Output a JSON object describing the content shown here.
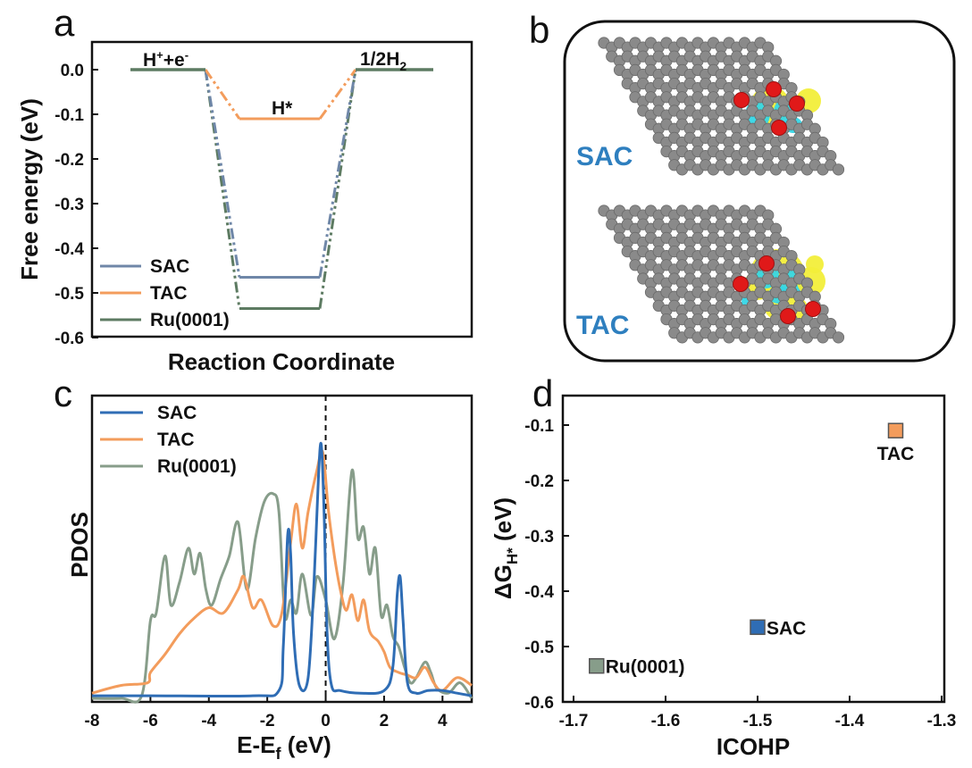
{
  "colors": {
    "SAC": "#2f6db5",
    "TAC": "#f39c5c",
    "Ru": "#879d8a",
    "SAC_a": "#6f87a8",
    "Ru_a": "#5d7b62",
    "axis": "#111111"
  },
  "panels": {
    "a": "a",
    "b": "b",
    "c": "c",
    "d": "d"
  },
  "panel_b": {
    "labels": [
      "SAC",
      "TAC"
    ],
    "colors": {
      "carbon": "#8a8a8a",
      "ru": "#e01919",
      "iso_yellow": "#f2ee3a",
      "iso_cyan": "#35d6e6"
    }
  },
  "chart_data": [
    {
      "id": "a",
      "type": "line",
      "ylabel": "Free energy (eV)",
      "xlabel": "Reaction Coordinate",
      "ylim": [
        -0.6,
        0.0
      ],
      "yticks": [
        "0.0",
        "-0.1",
        "-0.2",
        "-0.3",
        "-0.4",
        "-0.5",
        "-0.6"
      ],
      "states": [
        "H+e-",
        "H*",
        "1/2H2"
      ],
      "state_labels": {
        "left_main": "H",
        "left_sup": "+",
        "left_plus": "+e",
        "left_sup2": "-",
        "mid": "H*",
        "right_main": "1/2H",
        "right_sub": "2"
      },
      "series": [
        {
          "name": "SAC",
          "values": [
            0.0,
            -0.465,
            0.0
          ]
        },
        {
          "name": "TAC",
          "values": [
            0.0,
            -0.11,
            0.0
          ]
        },
        {
          "name": "Ru(0001)",
          "values": [
            0.0,
            -0.535,
            0.0
          ]
        }
      ],
      "legend": "bottom-left",
      "grid": false
    },
    {
      "id": "c",
      "type": "line",
      "xlabel_main": "E-E",
      "xlabel_sub": "f",
      "xlabel_unit": " (eV)",
      "ylabel": "PDOS",
      "xlim": [
        -8,
        5
      ],
      "xticks": [
        "-8",
        "-6",
        "-4",
        "-2",
        "0",
        "2",
        "4"
      ],
      "fermi_line_x": 0,
      "series": [
        {
          "name": "SAC",
          "x": [
            -8,
            -6,
            -2.5,
            -1.6,
            -1.45,
            -1.3,
            -1.2,
            -1.1,
            -0.9,
            -0.6,
            -0.4,
            -0.25,
            -0.15,
            -0.05,
            0.05,
            0.2,
            0.5,
            1.2,
            2.0,
            2.3,
            2.45,
            2.55,
            2.65,
            2.8,
            3.1,
            3.5,
            4.0,
            4.5,
            5.0
          ],
          "y": [
            0.01,
            0.01,
            0.01,
            0.03,
            0.2,
            0.63,
            0.56,
            0.25,
            0.05,
            0.08,
            0.45,
            0.85,
            0.98,
            0.7,
            0.25,
            0.05,
            0.03,
            0.02,
            0.03,
            0.12,
            0.4,
            0.47,
            0.3,
            0.06,
            0.02,
            0.03,
            0.03,
            0.02,
            0.01
          ]
        },
        {
          "name": "TAC",
          "x": [
            -8,
            -7,
            -6.1,
            -6.0,
            -5.5,
            -5.0,
            -4.5,
            -4.0,
            -3.5,
            -3.0,
            -2.8,
            -2.5,
            -2.2,
            -1.8,
            -1.5,
            -1.2,
            -1.0,
            -0.8,
            -0.6,
            -0.3,
            -0.1,
            0.1,
            0.3,
            0.5,
            0.7,
            0.9,
            1.1,
            1.3,
            1.5,
            1.8,
            2.0,
            2.2,
            2.5,
            2.8,
            3.1,
            3.4,
            3.7,
            4.0,
            4.5,
            5.0
          ],
          "y": [
            0.02,
            0.05,
            0.06,
            0.1,
            0.17,
            0.25,
            0.31,
            0.35,
            0.33,
            0.42,
            0.47,
            0.35,
            0.38,
            0.28,
            0.33,
            0.6,
            0.75,
            0.58,
            0.72,
            0.88,
            0.95,
            0.72,
            0.55,
            0.42,
            0.34,
            0.4,
            0.3,
            0.38,
            0.26,
            0.22,
            0.18,
            0.12,
            0.1,
            0.09,
            0.08,
            0.12,
            0.06,
            0.03,
            0.08,
            0.05
          ]
        },
        {
          "name": "Ru(0001)",
          "x": [
            -8,
            -7,
            -6.3,
            -6.0,
            -5.8,
            -5.5,
            -5.3,
            -5.0,
            -4.7,
            -4.5,
            -4.3,
            -4.1,
            -3.9,
            -3.6,
            -3.3,
            -3.0,
            -2.7,
            -2.4,
            -2.1,
            -1.8,
            -1.6,
            -1.4,
            -1.2,
            -1.0,
            -0.8,
            -0.5,
            -0.3,
            0.0,
            0.3,
            0.6,
            0.9,
            1.1,
            1.3,
            1.5,
            1.7,
            1.9,
            2.1,
            2.3,
            2.5,
            2.7,
            2.9,
            3.1,
            3.4,
            3.6,
            3.8,
            4.2,
            4.6,
            5.0
          ],
          "y": [
            0.0,
            0.0,
            0.01,
            0.3,
            0.33,
            0.55,
            0.36,
            0.45,
            0.58,
            0.48,
            0.56,
            0.42,
            0.36,
            0.46,
            0.55,
            0.68,
            0.42,
            0.62,
            0.76,
            0.79,
            0.72,
            0.32,
            0.38,
            0.33,
            0.48,
            0.32,
            0.47,
            0.38,
            0.23,
            0.45,
            0.88,
            0.62,
            0.66,
            0.48,
            0.58,
            0.32,
            0.36,
            0.24,
            0.2,
            0.12,
            0.06,
            0.08,
            0.14,
            0.1,
            0.04,
            0.02,
            0.06,
            0.0
          ]
        }
      ],
      "legend": "top-left",
      "grid": false
    },
    {
      "id": "d",
      "type": "scatter",
      "xlabel": "ICOHP",
      "ylabel_main": "ΔG",
      "ylabel_sub": "H*",
      "ylabel_unit": " (eV)",
      "xlim": [
        -1.7,
        -1.3
      ],
      "ylim": [
        -0.6,
        -0.05
      ],
      "xticks": [
        "-1.7",
        "-1.6",
        "-1.5",
        "-1.4",
        "-1.3"
      ],
      "yticks": [
        "-0.1",
        "-0.2",
        "-0.3",
        "-0.4",
        "-0.5",
        "-0.6"
      ],
      "points": [
        {
          "name": "TAC",
          "x": -1.35,
          "y": -0.11
        },
        {
          "name": "SAC",
          "x": -1.5,
          "y": -0.465
        },
        {
          "name": "Ru(0001)",
          "x": -1.675,
          "y": -0.535
        }
      ],
      "grid": false
    }
  ]
}
